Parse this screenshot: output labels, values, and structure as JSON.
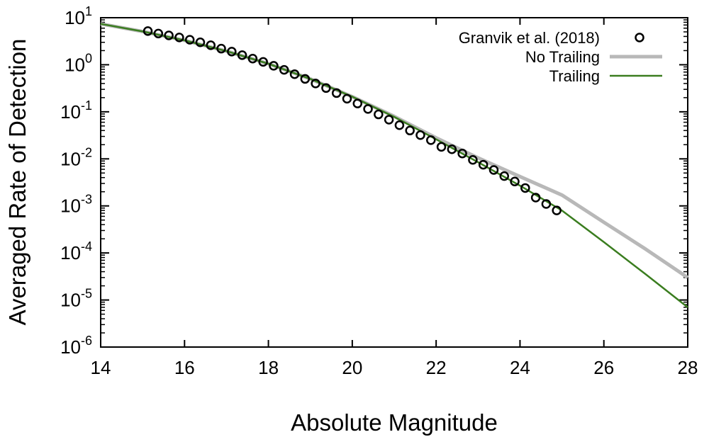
{
  "chart_data": {
    "type": "line",
    "title": "",
    "xlabel": "Absolute Magnitude",
    "ylabel": "Averaged Rate of Detection",
    "xlim": [
      14,
      28
    ],
    "ylim": [
      1e-06,
      10
    ],
    "yscale": "log",
    "grid": false,
    "legend_position": "top-right",
    "x_ticks": [
      {
        "value": 14,
        "label": "14"
      },
      {
        "value": 16,
        "label": "16"
      },
      {
        "value": 18,
        "label": "18"
      },
      {
        "value": 20,
        "label": "20"
      },
      {
        "value": 22,
        "label": "22"
      },
      {
        "value": 24,
        "label": "24"
      },
      {
        "value": 26,
        "label": "26"
      },
      {
        "value": 28,
        "label": "28"
      }
    ],
    "y_ticks": [
      {
        "value": 1e-06,
        "base": "10",
        "exp": "-6"
      },
      {
        "value": 1e-05,
        "base": "10",
        "exp": "-5"
      },
      {
        "value": 0.0001,
        "base": "10",
        "exp": "-4"
      },
      {
        "value": 0.001,
        "base": "10",
        "exp": "-3"
      },
      {
        "value": 0.01,
        "base": "10",
        "exp": "-2"
      },
      {
        "value": 0.1,
        "base": "10",
        "exp": "-1"
      },
      {
        "value": 1,
        "base": "10",
        "exp": "0"
      },
      {
        "value": 10,
        "base": "10",
        "exp": "1"
      }
    ],
    "series": [
      {
        "name": "Granvik et al. (2018)",
        "kind": "scatter",
        "marker": "open-circle",
        "color": "#000000",
        "x": [
          15.125,
          15.375,
          15.625,
          15.875,
          16.125,
          16.375,
          16.625,
          16.875,
          17.125,
          17.375,
          17.625,
          17.875,
          18.125,
          18.375,
          18.625,
          18.875,
          19.125,
          19.375,
          19.625,
          19.875,
          20.125,
          20.375,
          20.625,
          20.875,
          21.125,
          21.375,
          21.625,
          21.875,
          22.125,
          22.375,
          22.625,
          22.875,
          23.125,
          23.375,
          23.625,
          23.875,
          24.125,
          24.375,
          24.625,
          24.875
        ],
        "y": [
          5.2,
          4.6,
          4.2,
          3.8,
          3.4,
          3.0,
          2.6,
          2.2,
          1.9,
          1.6,
          1.35,
          1.15,
          0.95,
          0.78,
          0.63,
          0.5,
          0.4,
          0.32,
          0.25,
          0.19,
          0.15,
          0.115,
          0.088,
          0.068,
          0.052,
          0.04,
          0.032,
          0.025,
          0.018,
          0.016,
          0.013,
          0.0095,
          0.0075,
          0.0058,
          0.0043,
          0.0033,
          0.0024,
          0.0015,
          0.0011,
          0.0008
        ]
      },
      {
        "name": "No Trailing",
        "kind": "line",
        "color": "#b8b8b8",
        "x": [
          14,
          15,
          16,
          17,
          18,
          19,
          20,
          21,
          22,
          23,
          24,
          25,
          26,
          27,
          28
        ],
        "y": [
          7.4,
          5.1,
          3.3,
          1.95,
          1.05,
          0.5,
          0.21,
          0.08,
          0.028,
          0.0105,
          0.0042,
          0.0017,
          0.00045,
          0.00012,
          3e-05
        ]
      },
      {
        "name": "Trailing",
        "kind": "line",
        "color": "#3a7d1f",
        "x": [
          14,
          15,
          16,
          17,
          18,
          19,
          20,
          21,
          22,
          23,
          24,
          25,
          26,
          27,
          28
        ],
        "y": [
          7.4,
          5.1,
          3.3,
          1.95,
          1.05,
          0.5,
          0.21,
          0.078,
          0.026,
          0.0085,
          0.0027,
          0.0008,
          0.00017,
          3.5e-05,
          7e-06
        ]
      }
    ]
  }
}
